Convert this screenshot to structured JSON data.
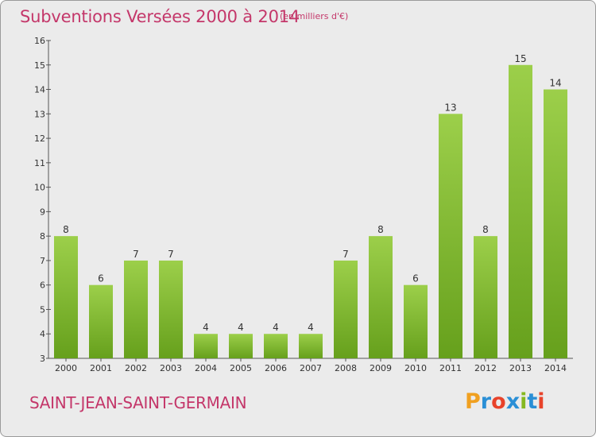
{
  "chart_data": {
    "type": "bar",
    "title": "Subventions Versées 2000 à 2014",
    "subtitle": "(en milliers d'€)",
    "categories": [
      "2000",
      "2001",
      "2002",
      "2003",
      "2004",
      "2005",
      "2006",
      "2007",
      "2008",
      "2009",
      "2010",
      "2011",
      "2012",
      "2013",
      "2014"
    ],
    "values": [
      8,
      6,
      7,
      7,
      4,
      4,
      4,
      4,
      7,
      8,
      6,
      13,
      8,
      15,
      14
    ],
    "ylim": [
      3,
      16
    ],
    "yticks": [
      3,
      4,
      5,
      6,
      7,
      8,
      9,
      10,
      11,
      12,
      13,
      14,
      15,
      16
    ],
    "grid": false,
    "bar_color_top": "#9ccf4a",
    "bar_color_bottom": "#66a01c"
  },
  "footer": {
    "commune": "SAINT-JEAN-SAINT-GERMAIN",
    "logo_text": "Proxiti",
    "logo_colors": [
      "#f0a020",
      "#2a8fd6",
      "#e8432b",
      "#2a8fd6",
      "#86b820",
      "#2a8fd6",
      "#e8432b"
    ]
  },
  "colors": {
    "title": "#c4376a",
    "background": "#ebebeb"
  }
}
